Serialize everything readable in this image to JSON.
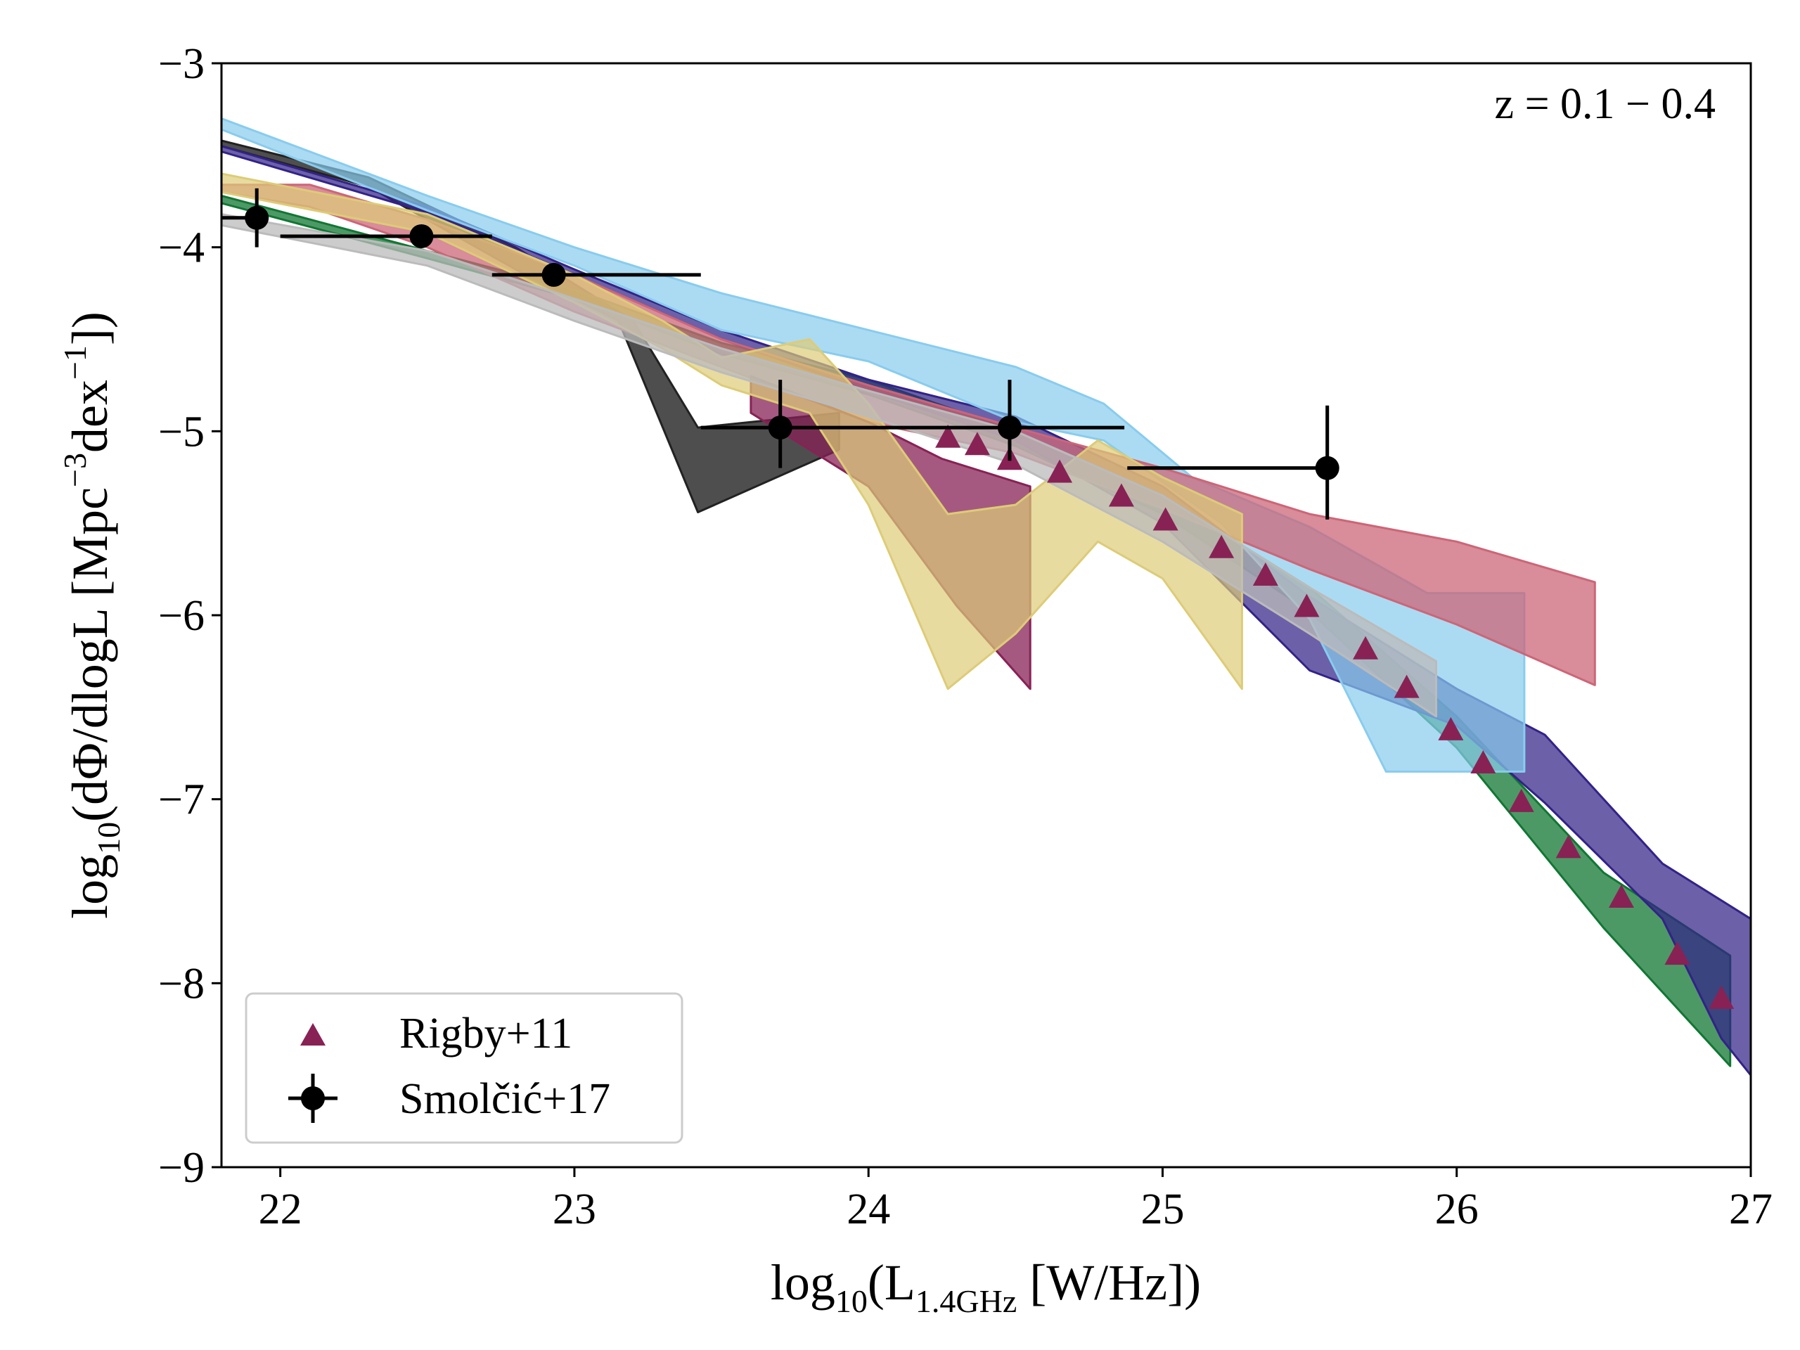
{
  "chart_data": {
    "type": "line",
    "title": "",
    "annotation": "z = 0.1 − 0.4",
    "xlabel": {
      "prefix": "log",
      "sub": "10",
      "open": "(L",
      "xsub": "1.4GHz",
      "rest": " [W/Hz])"
    },
    "ylabel": {
      "prefix": "log",
      "sub": "10",
      "main": "(dΦ/dlogL [Mpc",
      "sup1": "−3",
      "mid": "dex",
      "sup2": "−1",
      "end": "])"
    },
    "xlim": [
      21.8,
      27
    ],
    "ylim": [
      -9,
      -3
    ],
    "x_ticks": [
      22,
      23,
      24,
      25,
      26,
      27
    ],
    "x_tick_labels": [
      "22",
      "23",
      "24",
      "25",
      "26",
      "27"
    ],
    "y_ticks": [
      -3,
      -4,
      -5,
      -6,
      -7,
      -8,
      -9
    ],
    "y_tick_labels": [
      "−3",
      "−4",
      "−5",
      "−6",
      "−7",
      "−8",
      "−9"
    ],
    "legend": {
      "placement": "lower-left",
      "entries": [
        {
          "label": "Rigby+11",
          "marker": "triangle",
          "color": "#882255"
        },
        {
          "label": "Smolčić+17",
          "marker": "circle-errorbar",
          "color": "#000000"
        }
      ]
    },
    "bands": [
      {
        "name": "black band",
        "color": "#222222",
        "opacity": 0.8,
        "upper": [
          [
            21.8,
            -3.42
          ],
          [
            22.3,
            -3.62
          ],
          [
            22.8,
            -4.0
          ],
          [
            23.2,
            -4.4
          ],
          [
            23.42,
            -4.98
          ],
          [
            23.9,
            -4.9
          ]
        ],
        "lower": [
          [
            21.8,
            -3.45
          ],
          [
            22.3,
            -3.67
          ],
          [
            22.8,
            -4.12
          ],
          [
            23.15,
            -4.4
          ],
          [
            23.42,
            -5.44
          ],
          [
            23.9,
            -5.1
          ]
        ]
      },
      {
        "name": "green band",
        "color": "#117733",
        "opacity": 0.75,
        "upper": [
          [
            21.8,
            -3.72
          ],
          [
            22.5,
            -4.02
          ],
          [
            23.0,
            -4.23
          ],
          [
            23.5,
            -4.52
          ],
          [
            24.0,
            -4.72
          ],
          [
            24.5,
            -5.0
          ],
          [
            25.0,
            -5.35
          ],
          [
            25.5,
            -5.85
          ],
          [
            26.0,
            -6.55
          ],
          [
            26.5,
            -7.4
          ],
          [
            26.93,
            -7.85
          ]
        ],
        "lower": [
          [
            21.8,
            -3.76
          ],
          [
            22.5,
            -4.06
          ],
          [
            23.0,
            -4.28
          ],
          [
            23.5,
            -4.58
          ],
          [
            24.0,
            -4.8
          ],
          [
            24.5,
            -5.08
          ],
          [
            25.0,
            -5.45
          ],
          [
            25.5,
            -5.98
          ],
          [
            26.0,
            -6.72
          ],
          [
            26.5,
            -7.7
          ],
          [
            26.93,
            -8.45
          ]
        ]
      },
      {
        "name": "navy band",
        "color": "#332288",
        "opacity": 0.72,
        "upper": [
          [
            21.8,
            -3.45
          ],
          [
            22.5,
            -3.78
          ],
          [
            23.0,
            -4.12
          ],
          [
            23.5,
            -4.45
          ],
          [
            24.0,
            -4.72
          ],
          [
            24.5,
            -4.92
          ],
          [
            25.0,
            -5.3
          ],
          [
            25.5,
            -5.9
          ],
          [
            26.0,
            -6.4
          ],
          [
            26.3,
            -6.65
          ],
          [
            26.7,
            -7.35
          ],
          [
            27.0,
            -7.65
          ]
        ],
        "lower": [
          [
            21.8,
            -3.48
          ],
          [
            22.5,
            -3.81
          ],
          [
            23.0,
            -4.15
          ],
          [
            23.5,
            -4.5
          ],
          [
            24.0,
            -4.78
          ],
          [
            24.5,
            -5.05
          ],
          [
            25.0,
            -5.5
          ],
          [
            25.5,
            -6.3
          ],
          [
            26.0,
            -6.6
          ],
          [
            26.3,
            -7.02
          ],
          [
            26.7,
            -7.65
          ],
          [
            26.9,
            -8.3
          ],
          [
            27.0,
            -8.5
          ]
        ]
      },
      {
        "name": "light blue band",
        "color": "#88CCEE",
        "opacity": 0.7,
        "upper": [
          [
            21.8,
            -3.3
          ],
          [
            22.5,
            -3.72
          ],
          [
            23.0,
            -4.0
          ],
          [
            23.5,
            -4.25
          ],
          [
            24.0,
            -4.45
          ],
          [
            24.5,
            -4.65
          ],
          [
            24.8,
            -4.85
          ],
          [
            25.1,
            -5.25
          ],
          [
            25.5,
            -5.52
          ],
          [
            25.9,
            -5.88
          ],
          [
            26.23,
            -5.88
          ]
        ],
        "lower": [
          [
            21.8,
            -3.36
          ],
          [
            22.5,
            -3.8
          ],
          [
            23.0,
            -4.1
          ],
          [
            23.5,
            -4.45
          ],
          [
            24.0,
            -4.62
          ],
          [
            24.5,
            -4.95
          ],
          [
            24.8,
            -5.05
          ],
          [
            25.2,
            -5.5
          ],
          [
            25.5,
            -6.02
          ],
          [
            25.76,
            -6.85
          ],
          [
            26.23,
            -6.85
          ]
        ]
      },
      {
        "name": "pink band",
        "color": "#CC6677",
        "opacity": 0.75,
        "upper": [
          [
            21.8,
            -3.66
          ],
          [
            22.1,
            -3.66
          ],
          [
            22.5,
            -3.85
          ],
          [
            23.0,
            -4.15
          ],
          [
            23.5,
            -4.5
          ],
          [
            24.0,
            -4.75
          ],
          [
            24.5,
            -4.98
          ],
          [
            25.0,
            -5.2
          ],
          [
            25.5,
            -5.45
          ],
          [
            26.0,
            -5.6
          ],
          [
            26.47,
            -5.82
          ]
        ],
        "lower": [
          [
            21.8,
            -3.7
          ],
          [
            22.1,
            -3.78
          ],
          [
            22.5,
            -4.0
          ],
          [
            23.0,
            -4.35
          ],
          [
            23.5,
            -4.65
          ],
          [
            24.0,
            -4.95
          ],
          [
            24.5,
            -5.12
          ],
          [
            25.0,
            -5.42
          ],
          [
            25.5,
            -5.75
          ],
          [
            26.0,
            -6.05
          ],
          [
            26.47,
            -6.38
          ]
        ]
      },
      {
        "name": "purple band",
        "color": "#882255",
        "opacity": 0.75,
        "upper": [
          [
            23.6,
            -4.7
          ],
          [
            24.0,
            -4.95
          ],
          [
            24.25,
            -5.15
          ],
          [
            24.55,
            -5.3
          ]
        ],
        "lower": [
          [
            23.6,
            -4.9
          ],
          [
            24.0,
            -5.3
          ],
          [
            24.3,
            -5.95
          ],
          [
            24.55,
            -6.4
          ]
        ]
      },
      {
        "name": "yellow band",
        "color": "#DDCC77",
        "opacity": 0.7,
        "upper": [
          [
            21.8,
            -3.6
          ],
          [
            22.5,
            -3.82
          ],
          [
            23.0,
            -4.15
          ],
          [
            23.3,
            -4.4
          ],
          [
            23.5,
            -4.6
          ],
          [
            23.8,
            -4.5
          ],
          [
            24.0,
            -4.85
          ],
          [
            24.27,
            -5.45
          ],
          [
            24.5,
            -5.4
          ],
          [
            24.78,
            -5.05
          ],
          [
            25.0,
            -5.25
          ],
          [
            25.27,
            -5.45
          ]
        ],
        "lower": [
          [
            21.8,
            -3.7
          ],
          [
            22.5,
            -3.92
          ],
          [
            23.0,
            -4.3
          ],
          [
            23.3,
            -4.55
          ],
          [
            23.5,
            -4.75
          ],
          [
            23.8,
            -4.9
          ],
          [
            24.0,
            -5.4
          ],
          [
            24.27,
            -6.4
          ],
          [
            24.5,
            -6.1
          ],
          [
            24.78,
            -5.6
          ],
          [
            25.0,
            -5.8
          ],
          [
            25.27,
            -6.4
          ]
        ]
      },
      {
        "name": "grey band",
        "color": "#BBBBBB",
        "opacity": 0.75,
        "upper": [
          [
            21.8,
            -3.82
          ],
          [
            22.5,
            -4.02
          ],
          [
            23.0,
            -4.28
          ],
          [
            23.5,
            -4.55
          ],
          [
            24.0,
            -4.78
          ],
          [
            24.5,
            -5.0
          ],
          [
            25.0,
            -5.35
          ],
          [
            25.5,
            -5.85
          ],
          [
            25.93,
            -6.25
          ]
        ],
        "lower": [
          [
            21.8,
            -3.88
          ],
          [
            22.5,
            -4.1
          ],
          [
            23.0,
            -4.4
          ],
          [
            23.5,
            -4.68
          ],
          [
            24.0,
            -4.92
          ],
          [
            24.5,
            -5.18
          ],
          [
            25.0,
            -5.6
          ],
          [
            25.5,
            -6.1
          ],
          [
            25.93,
            -6.55
          ]
        ]
      }
    ],
    "series": [
      {
        "name": "Rigby+11",
        "marker": "triangle",
        "color": "#882255",
        "points": [
          [
            24.27,
            -5.04
          ],
          [
            24.37,
            -5.08
          ],
          [
            24.48,
            -5.16
          ],
          [
            24.65,
            -5.23
          ],
          [
            24.86,
            -5.36
          ],
          [
            25.01,
            -5.49
          ],
          [
            25.2,
            -5.64
          ],
          [
            25.35,
            -5.79
          ],
          [
            25.49,
            -5.96
          ],
          [
            25.69,
            -6.19
          ],
          [
            25.83,
            -6.4
          ],
          [
            25.98,
            -6.63
          ],
          [
            26.09,
            -6.81
          ],
          [
            26.22,
            -7.02
          ],
          [
            26.38,
            -7.27
          ],
          [
            26.56,
            -7.54
          ],
          [
            26.75,
            -7.85
          ],
          [
            26.9,
            -8.09
          ]
        ]
      },
      {
        "name": "Smolčić+17",
        "marker": "circle-errorbar",
        "color": "#000000",
        "points": [
          {
            "x": 21.92,
            "y": -3.84,
            "xerr": [
              0.12,
              0.0
            ],
            "yerr": [
              0.16,
              0.16
            ]
          },
          {
            "x": 22.48,
            "y": -3.94,
            "xerr": [
              0.48,
              0.24
            ],
            "yerr": [
              0.0,
              0.0
            ]
          },
          {
            "x": 22.93,
            "y": -4.15,
            "xerr": [
              0.21,
              0.5
            ],
            "yerr": [
              0.0,
              0.0
            ]
          },
          {
            "x": 23.7,
            "y": -4.98,
            "xerr": [
              0.27,
              1.17
            ],
            "yerr": [
              0.22,
              0.26
            ]
          },
          {
            "x": 24.48,
            "y": -4.98,
            "xerr": [
              0.0,
              0.0
            ],
            "yerr": [
              0.18,
              0.26
            ]
          },
          {
            "x": 25.56,
            "y": -5.2,
            "xerr": [
              0.68,
              0.0
            ],
            "yerr": [
              0.28,
              0.34
            ]
          }
        ]
      }
    ]
  }
}
